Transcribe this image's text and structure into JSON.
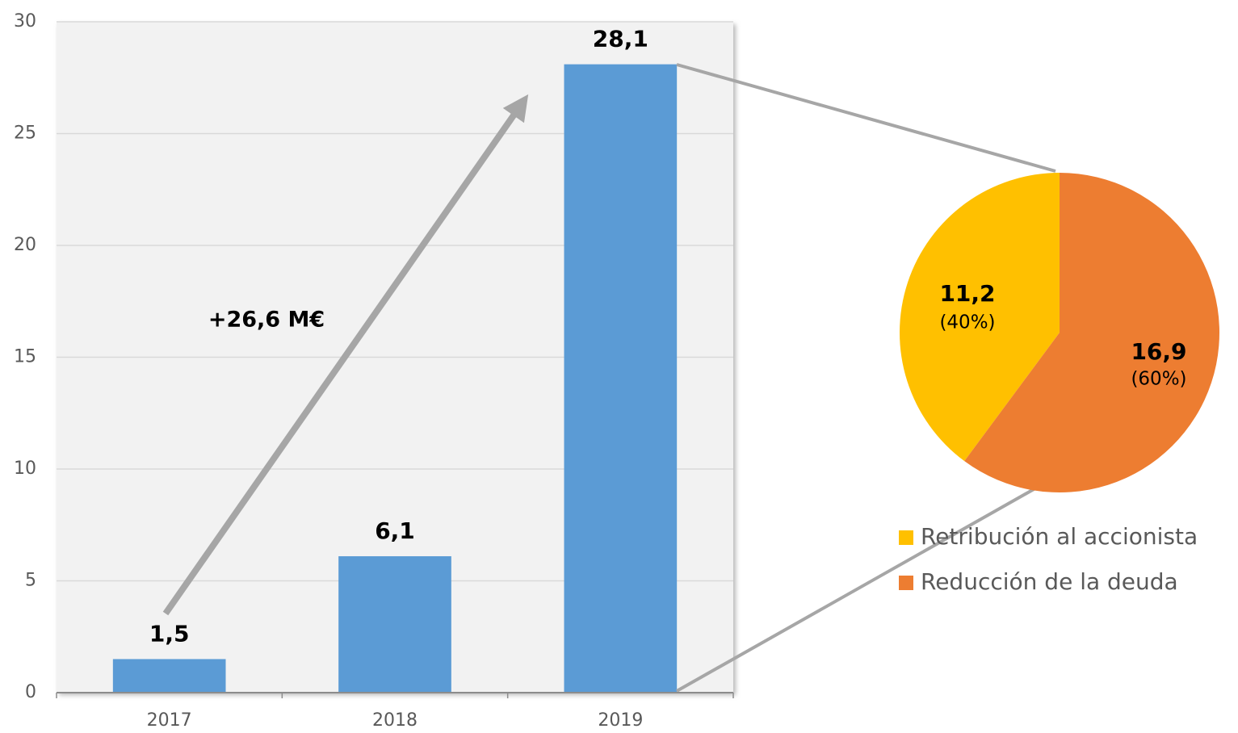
{
  "chart_data": [
    {
      "type": "bar",
      "categories": [
        "2017",
        "2018",
        "2019"
      ],
      "values": [
        1.5,
        6.1,
        28.1
      ],
      "value_labels": [
        "1,5",
        "6,1",
        "28,1"
      ],
      "color": "#5b9bd5",
      "ylim": [
        0,
        30
      ],
      "yticks": [
        0,
        5,
        10,
        15,
        20,
        25,
        30
      ],
      "grid": true,
      "annotation": "+26,6 M€"
    },
    {
      "type": "pie",
      "categories": [
        "Retribución al accionista",
        "Reducción de la deuda"
      ],
      "values": [
        11.2,
        16.9
      ],
      "value_labels": [
        "11,2",
        "16,9"
      ],
      "percent_labels": [
        "(40%)",
        "(60%)"
      ],
      "colors": [
        "#ffc000",
        "#ed7d31"
      ],
      "legend": "bottom"
    }
  ]
}
